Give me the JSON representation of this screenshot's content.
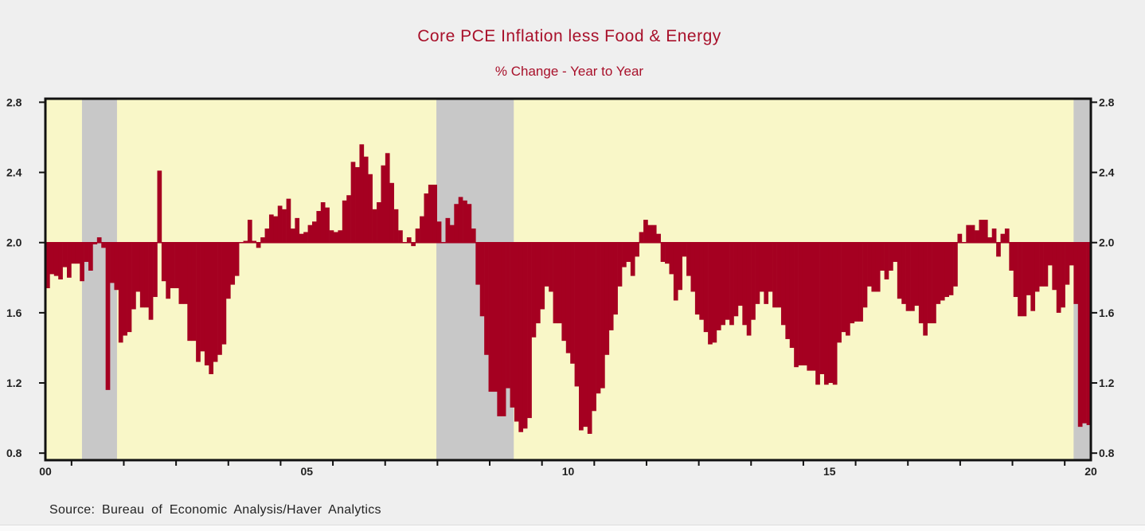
{
  "chart_data": {
    "type": "bar",
    "title": "Core PCE Inflation less Food & Energy",
    "subtitle": "% Change - Year to Year",
    "source": "Source:  Bureau of Economic Analysis/Haver Analytics",
    "frequency": "monthly",
    "x_range": [
      2000.5,
      2020.5
    ],
    "ylim": [
      0.76,
      2.82
    ],
    "baseline": 2.0,
    "y_ticks": [
      "0.8",
      "1.2",
      "1.6",
      "2.0",
      "2.4",
      "2.8"
    ],
    "x_tick_labels": [
      {
        "label": "00",
        "year": 2000.5
      },
      {
        "label": "05",
        "year": 2005.5
      },
      {
        "label": "10",
        "year": 2010.5
      },
      {
        "label": "15",
        "year": 2015.5
      },
      {
        "label": "20",
        "year": 2020.5
      }
    ],
    "recessions": [
      [
        2001.2,
        2001.87
      ],
      [
        2007.98,
        2009.46
      ],
      [
        2020.17,
        2020.5
      ]
    ],
    "colors": {
      "bars": "#a50021",
      "plot_background": "#f9f7c8",
      "recession": "#c8c8c8",
      "title": "#a8102a"
    },
    "values": [
      1.74,
      1.82,
      1.81,
      1.79,
      1.86,
      1.8,
      1.88,
      1.88,
      1.78,
      1.89,
      1.84,
      1.99,
      2.03,
      1.97,
      1.16,
      1.77,
      1.73,
      1.43,
      1.47,
      1.49,
      1.62,
      1.72,
      1.63,
      1.63,
      1.56,
      1.69,
      2.41,
      1.78,
      1.68,
      1.74,
      1.74,
      1.65,
      1.65,
      1.44,
      1.44,
      1.32,
      1.38,
      1.3,
      1.25,
      1.32,
      1.36,
      1.42,
      1.68,
      1.76,
      1.81,
      2.0,
      2.01,
      2.13,
      2.01,
      1.97,
      2.03,
      2.08,
      2.16,
      2.15,
      2.21,
      2.19,
      2.25,
      2.08,
      2.14,
      2.05,
      2.06,
      2.1,
      2.12,
      2.18,
      2.23,
      2.2,
      2.07,
      2.06,
      2.07,
      2.24,
      2.27,
      2.46,
      2.43,
      2.56,
      2.49,
      2.39,
      2.19,
      2.23,
      2.44,
      2.51,
      2.34,
      2.19,
      2.07,
      2.0,
      2.03,
      1.98,
      2.08,
      2.15,
      2.28,
      2.33,
      2.33,
      2.12,
      2.0,
      2.14,
      2.1,
      2.22,
      2.26,
      2.24,
      2.22,
      2.08,
      1.76,
      1.58,
      1.36,
      1.15,
      1.15,
      1.01,
      1.01,
      1.17,
      1.06,
      0.98,
      0.92,
      0.94,
      1.0,
      1.46,
      1.54,
      1.62,
      1.75,
      1.72,
      1.54,
      1.54,
      1.44,
      1.37,
      1.31,
      1.18,
      0.93,
      0.95,
      0.91,
      1.04,
      1.14,
      1.17,
      1.36,
      1.5,
      1.59,
      1.75,
      1.86,
      1.89,
      1.81,
      1.92,
      2.06,
      2.13,
      2.1,
      2.1,
      2.05,
      1.89,
      1.88,
      1.82,
      1.67,
      1.73,
      1.92,
      1.81,
      1.72,
      1.59,
      1.56,
      1.49,
      1.42,
      1.43,
      1.5,
      1.53,
      1.56,
      1.53,
      1.58,
      1.64,
      1.53,
      1.47,
      1.56,
      1.65,
      1.72,
      1.65,
      1.72,
      1.63,
      1.63,
      1.53,
      1.45,
      1.4,
      1.29,
      1.3,
      1.3,
      1.27,
      1.27,
      1.19,
      1.25,
      1.19,
      1.2,
      1.19,
      1.43,
      1.49,
      1.47,
      1.54,
      1.55,
      1.55,
      1.63,
      1.75,
      1.72,
      1.72,
      1.84,
      1.79,
      1.84,
      1.89,
      1.68,
      1.65,
      1.61,
      1.61,
      1.64,
      1.54,
      1.47,
      1.54,
      1.54,
      1.65,
      1.67,
      1.69,
      1.7,
      1.75,
      2.05,
      2.0,
      2.1,
      2.1,
      2.07,
      2.13,
      2.13,
      2.03,
      2.08,
      1.92,
      2.05,
      2.08,
      1.84,
      1.69,
      1.58,
      1.58,
      1.7,
      1.61,
      1.72,
      1.75,
      1.75,
      1.87,
      1.73,
      1.6,
      1.63,
      1.76,
      1.87,
      1.65,
      0.95,
      0.97,
      0.96
    ]
  }
}
